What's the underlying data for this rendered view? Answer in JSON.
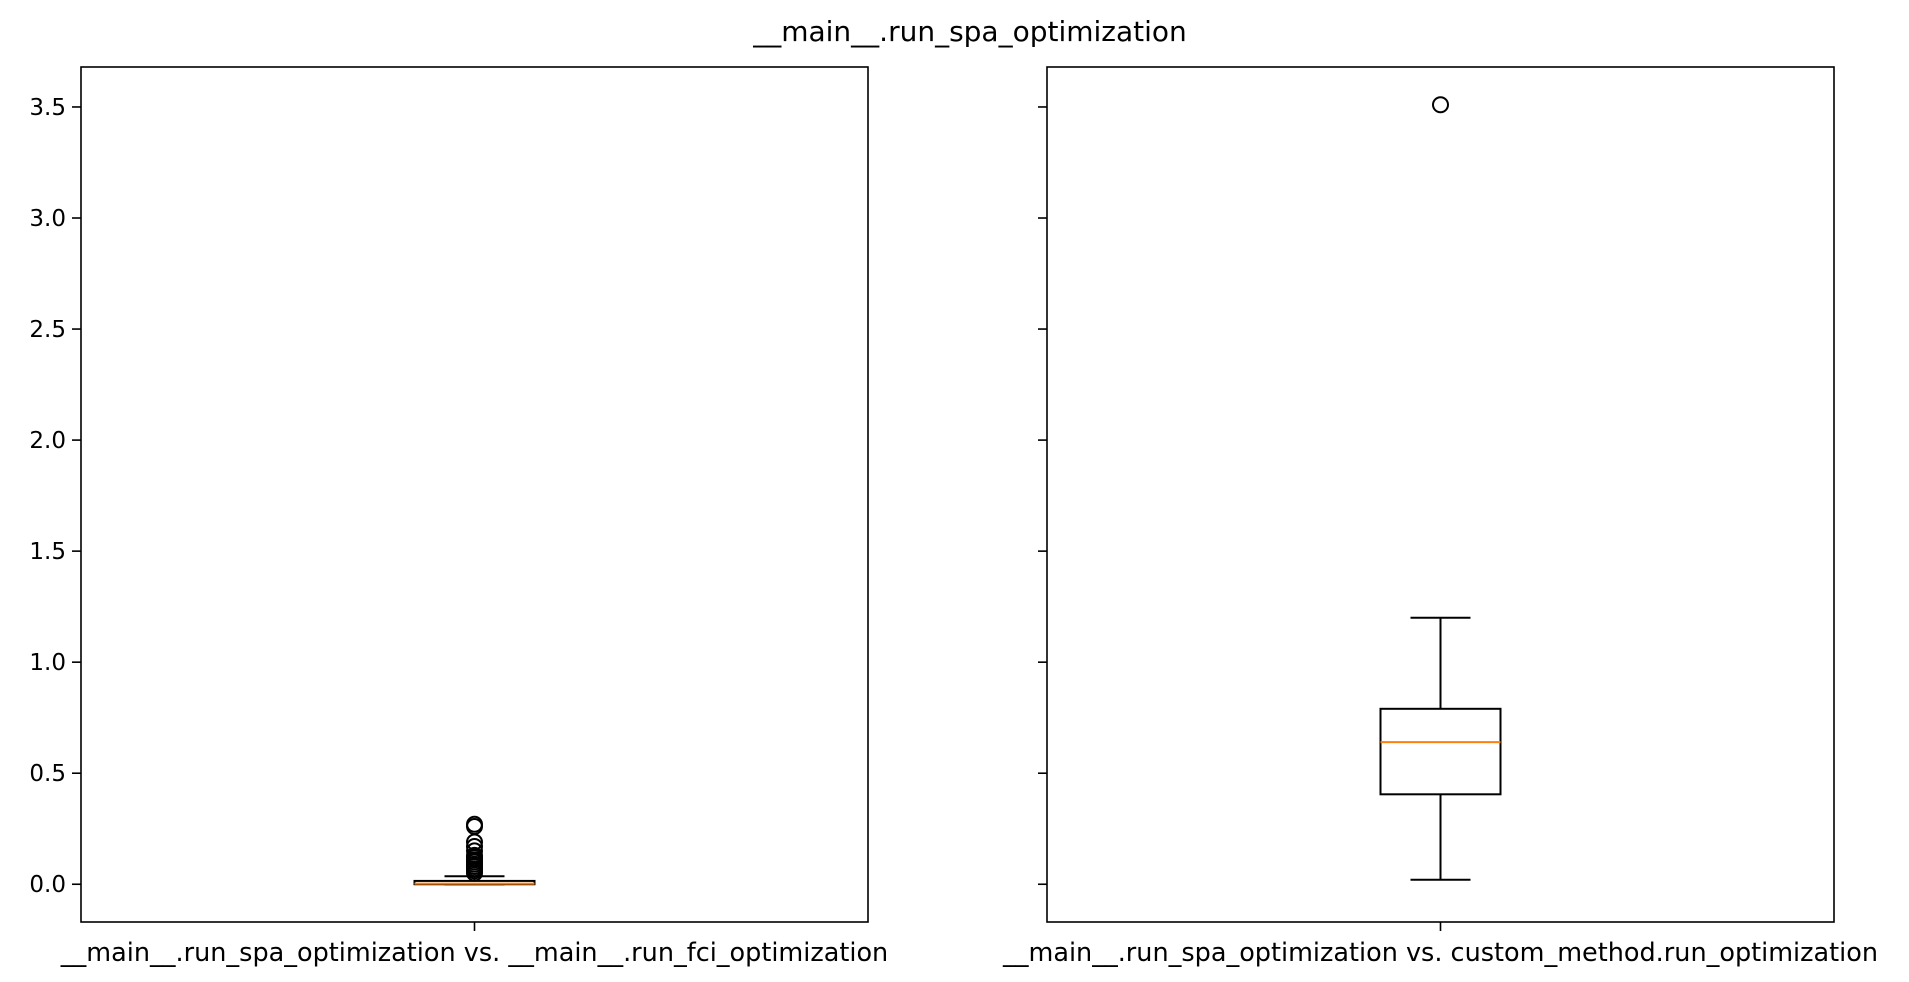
{
  "figure": {
    "title": "__main__.run_spa_optimization"
  },
  "chart_data": [
    {
      "type": "box",
      "xlabel": "__main__.run_spa_optimization vs. __main__.run_fci_optimization",
      "ylim": [
        -0.17,
        3.68
      ],
      "yticks": [
        0.0,
        0.5,
        1.0,
        1.5,
        2.0,
        2.5,
        3.0,
        3.5
      ],
      "ytick_labels": [
        "0.0",
        "0.5",
        "1.0",
        "1.5",
        "2.0",
        "2.5",
        "3.0",
        "3.5"
      ],
      "show_ytick_labels": true,
      "box": {
        "whisker_low": 0.0,
        "q1": 0.0,
        "median": 0.003,
        "q3": 0.015,
        "whisker_high": 0.036,
        "outliers": [
          0.05,
          0.06,
          0.07,
          0.08,
          0.09,
          0.1,
          0.11,
          0.12,
          0.13,
          0.15,
          0.17,
          0.19,
          0.26,
          0.27
        ]
      }
    },
    {
      "type": "box",
      "xlabel": "__main__.run_spa_optimization vs. custom_method.run_optimization",
      "ylim": [
        -0.17,
        3.68
      ],
      "yticks": [
        0.0,
        0.5,
        1.0,
        1.5,
        2.0,
        2.5,
        3.0,
        3.5
      ],
      "ytick_labels": [
        "0.0",
        "0.5",
        "1.0",
        "1.5",
        "2.0",
        "2.5",
        "3.0",
        "3.5"
      ],
      "show_ytick_labels": false,
      "box": {
        "whisker_low": 0.02,
        "q1": 0.405,
        "median": 0.64,
        "q3": 0.79,
        "whisker_high": 1.2,
        "outliers": [
          3.51
        ]
      }
    }
  ],
  "colors": {
    "box": "#000000",
    "median": "#ff7f0e",
    "background": "#ffffff"
  }
}
